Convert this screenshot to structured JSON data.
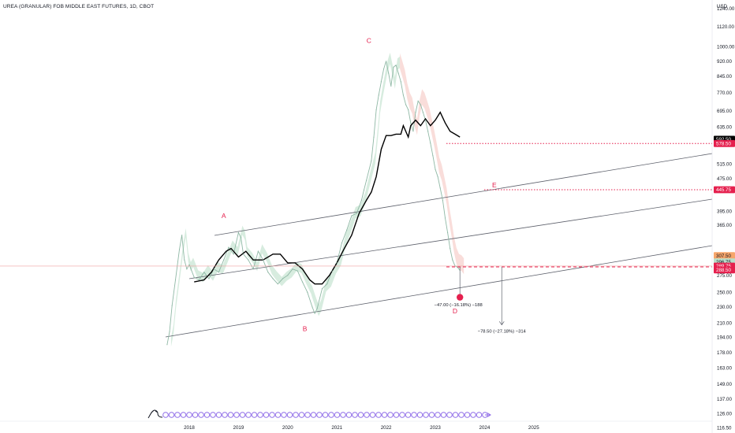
{
  "title": "UREA (GRANULAR) FOB MIDDLE EAST FUTURES, 1D, CBOT",
  "currency": "USD",
  "colors": {
    "price_line": "#8fb8a5",
    "cloud_green": "#a6d5b8",
    "cloud_red": "#f2b3ad",
    "kijun": "#000000",
    "channel": "#5d606b",
    "accent_red": "#e5204e",
    "current_price_bg": "#000000",
    "orange_tag": "#f7a66b",
    "green_tag": "#b9dfcb",
    "wave_label": "#e5204e",
    "circle_purple": "#8f6ce8"
  },
  "chart_data": {
    "type": "line",
    "title": "UREA (GRANULAR) FOB MIDDLE EAST FUTURES, 1D, CBOT",
    "xlabel": "",
    "ylabel": "USD",
    "scale": "log",
    "ylim": [
      112,
      1300
    ],
    "xlim": [
      2017.0,
      2025.4
    ],
    "x_tick_labels": [
      "2018",
      "2019",
      "2020",
      "2021",
      "2022",
      "2023",
      "2024",
      "2025"
    ],
    "y_tick_labels": [
      "1240.00",
      "1120.00",
      "1000.00",
      "920.00",
      "845.00",
      "770.00",
      "695.00",
      "635.00",
      "592.50",
      "515.00",
      "475.00",
      "395.00",
      "365.00",
      "275.00",
      "250.00",
      "230.00",
      "210.00",
      "194.00",
      "178.00",
      "163.00",
      "149.00",
      "137.00",
      "126.00",
      "116.50"
    ],
    "series": [
      {
        "style": "price",
        "x": [
          2017.55,
          2017.6,
          2017.65,
          2017.72,
          2017.8,
          2017.85,
          2017.9,
          2017.95,
          2018.0,
          2018.1,
          2018.2,
          2018.3,
          2018.4,
          2018.5,
          2018.6,
          2018.7,
          2018.8,
          2018.9,
          2019.0,
          2019.05,
          2019.1,
          2019.2,
          2019.3,
          2019.4,
          2019.5,
          2019.6,
          2019.7,
          2019.8,
          2019.9,
          2020.0,
          2020.1,
          2020.2,
          2020.3,
          2020.4,
          2020.5,
          2020.55,
          2020.6,
          2020.7,
          2020.8,
          2020.9,
          2021.0,
          2021.1,
          2021.2,
          2021.3,
          2021.4,
          2021.5,
          2021.55,
          2021.6,
          2021.7,
          2021.75,
          2021.8,
          2021.85,
          2021.9,
          2021.95,
          2022.0,
          2022.05,
          2022.1,
          2022.15,
          2022.2,
          2022.25,
          2022.3,
          2022.35,
          2022.4,
          2022.45,
          2022.5,
          2022.55,
          2022.6,
          2022.65,
          2022.7,
          2022.75,
          2022.8,
          2022.85,
          2022.9,
          2022.95,
          2023.0,
          2023.05,
          2023.1,
          2023.15,
          2023.2,
          2023.25,
          2023.3,
          2023.35,
          2023.4,
          2023.45,
          2023.5
        ],
        "y": [
          186,
          200,
          232,
          268,
          318,
          345,
          300,
          285,
          292,
          272,
          268,
          280,
          270,
          285,
          280,
          300,
          322,
          310,
          350,
          340,
          310,
          300,
          285,
          315,
          300,
          280,
          270,
          262,
          270,
          275,
          285,
          282,
          265,
          250,
          230,
          222,
          228,
          255,
          262,
          282,
          295,
          330,
          355,
          385,
          390,
          420,
          445,
          470,
          525,
          600,
          700,
          760,
          820,
          880,
          920,
          860,
          800,
          890,
          900,
          860,
          820,
          760,
          720,
          700,
          650,
          620,
          690,
          735,
          720,
          690,
          660,
          620,
          580,
          540,
          500,
          480,
          450,
          420,
          380,
          350,
          320,
          300,
          290,
          288,
          283
        ]
      },
      {
        "style": "kijun",
        "x": [
          2018.1,
          2018.3,
          2018.45,
          2018.6,
          2018.75,
          2018.85,
          2019.0,
          2019.15,
          2019.3,
          2019.5,
          2019.7,
          2019.85,
          2020.0,
          2020.15,
          2020.3,
          2020.45,
          2020.55,
          2020.7,
          2020.85,
          2021.0,
          2021.15,
          2021.3,
          2021.45,
          2021.6,
          2021.7,
          2021.8,
          2021.9,
          2022.0,
          2022.1,
          2022.2,
          2022.3,
          2022.35,
          2022.45,
          2022.5,
          2022.6,
          2022.7,
          2022.8,
          2022.9,
          2023.0,
          2023.1,
          2023.2,
          2023.3,
          2023.4,
          2023.5
        ],
        "y": [
          265,
          268,
          280,
          300,
          315,
          320,
          305,
          315,
          300,
          300,
          310,
          310,
          295,
          295,
          285,
          268,
          262,
          262,
          275,
          295,
          320,
          345,
          390,
          420,
          440,
          480,
          560,
          605,
          605,
          610,
          610,
          640,
          600,
          640,
          660,
          640,
          665,
          640,
          660,
          690,
          650,
          620,
          610,
          600
        ]
      }
    ],
    "annotations": [
      "A",
      "B",
      "C",
      "D",
      "E"
    ],
    "price_tags": [
      "592.50",
      "578.50",
      "445.75",
      "307.50",
      "296.75",
      "289.75",
      "288.50"
    ],
    "measurements": [
      "−47.00 (−16.18%) −188",
      "−78.50 (−27.18%) −314"
    ]
  }
}
